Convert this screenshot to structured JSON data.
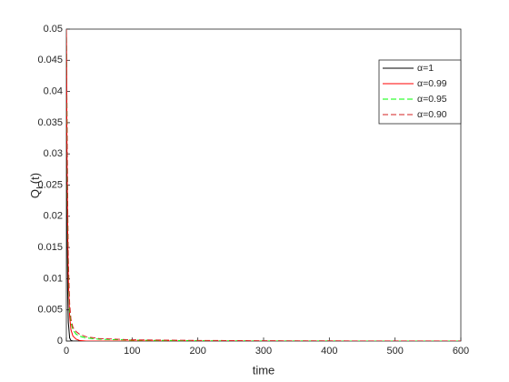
{
  "chart_data": {
    "type": "line",
    "xlabel": "time",
    "ylabel": [
      "Q",
      "I",
      "(t)"
    ],
    "x": [
      0,
      1,
      2,
      3,
      5,
      7,
      10,
      15,
      20,
      30,
      50,
      100,
      200,
      300,
      400,
      500,
      600
    ],
    "series": [
      {
        "name": "α=1",
        "color": "#000000",
        "style": "solid",
        "values": [
          0.05,
          0.02,
          0.008,
          0.003,
          0.0005,
          0.0001,
          0,
          0,
          0,
          0,
          0,
          0,
          0,
          0,
          0,
          0,
          0
        ]
      },
      {
        "name": "α=0.99",
        "color": "#ff0000",
        "style": "solid",
        "values": [
          0.05,
          0.03,
          0.018,
          0.01,
          0.004,
          0.0018,
          0.0008,
          0.0003,
          0.0001,
          0,
          0,
          0,
          0,
          0,
          0,
          0,
          0
        ]
      },
      {
        "name": "α=0.95",
        "color": "#00ff00",
        "style": "dashed",
        "values": [
          0.05,
          0.035,
          0.02,
          0.012,
          0.005,
          0.003,
          0.0018,
          0.0011,
          0.0008,
          0.0005,
          0.0003,
          0.00015,
          5e-05,
          2e-05,
          1e-05,
          0,
          0
        ]
      },
      {
        "name": "α=0.90",
        "color": "#d42020",
        "style": "dashed",
        "values": [
          0.05,
          0.036,
          0.022,
          0.013,
          0.006,
          0.0035,
          0.0022,
          0.0015,
          0.0011,
          0.0007,
          0.0004,
          0.0002,
          0.0001,
          5e-05,
          3e-05,
          2e-05,
          1e-05
        ]
      }
    ],
    "xlim": [
      0,
      600
    ],
    "xticks": [
      0,
      100,
      200,
      300,
      400,
      500,
      600
    ],
    "ylim": [
      0,
      0.05
    ],
    "yticks": [
      0,
      0.005,
      0.01,
      0.015,
      0.02,
      0.025,
      0.03,
      0.035,
      0.04,
      0.045,
      0.05
    ],
    "legend": "top-right"
  }
}
